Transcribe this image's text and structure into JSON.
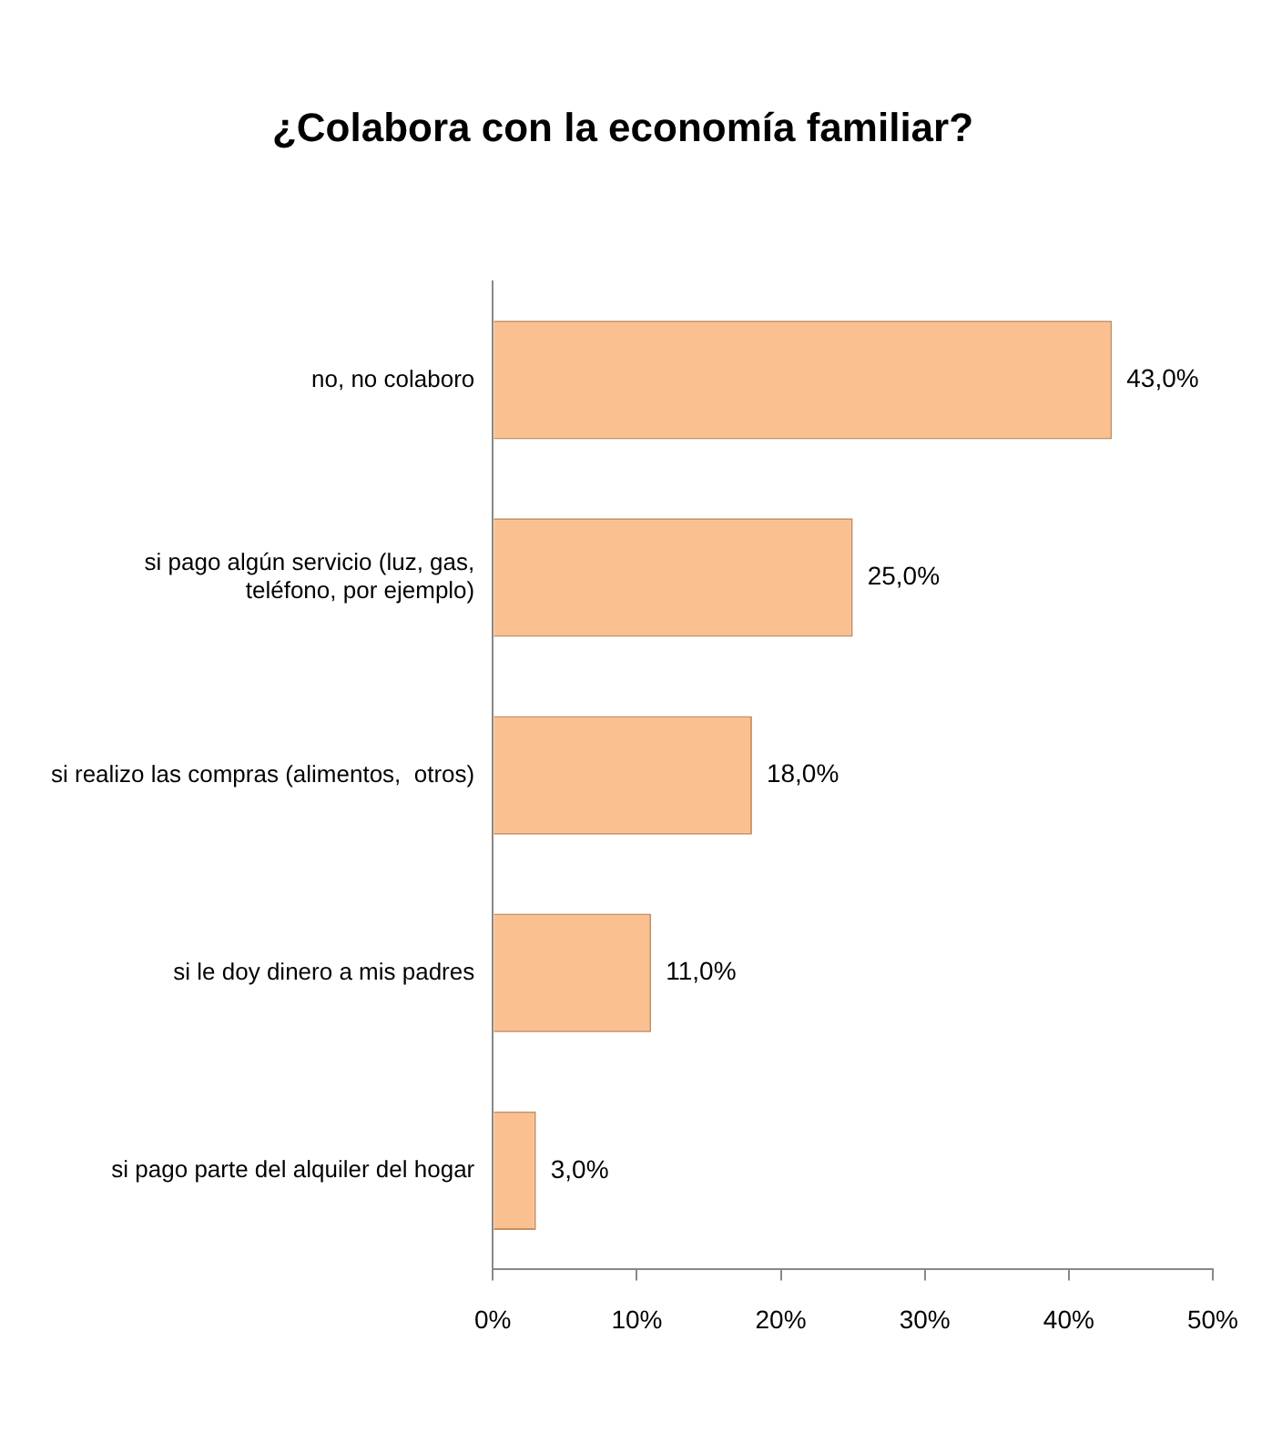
{
  "chart_data": {
    "type": "bar",
    "orientation": "horizontal",
    "title": "¿Colabora con la economía familiar?",
    "categories": [
      "no, no colaboro",
      "si pago algún servicio (luz, gas, teléfono, por ejemplo)",
      "si realizo las compras (alimentos,  otros)",
      "si le doy dinero a mis padres",
      "si pago parte del alquiler del hogar"
    ],
    "values": [
      43,
      25,
      18,
      11,
      3
    ],
    "value_labels": [
      "43,0%",
      "25,0%",
      "18,0%",
      "11,0%",
      "3,0%"
    ],
    "color": "#fac090",
    "xlim": [
      0,
      50
    ],
    "xticks": [
      {
        "value": 0,
        "label": "0%"
      },
      {
        "value": 10,
        "label": "10%"
      },
      {
        "value": 20,
        "label": "20%"
      },
      {
        "value": 30,
        "label": "30%"
      },
      {
        "value": 40,
        "label": "40%"
      },
      {
        "value": 50,
        "label": "50%"
      }
    ],
    "grid": false,
    "legend": false
  }
}
